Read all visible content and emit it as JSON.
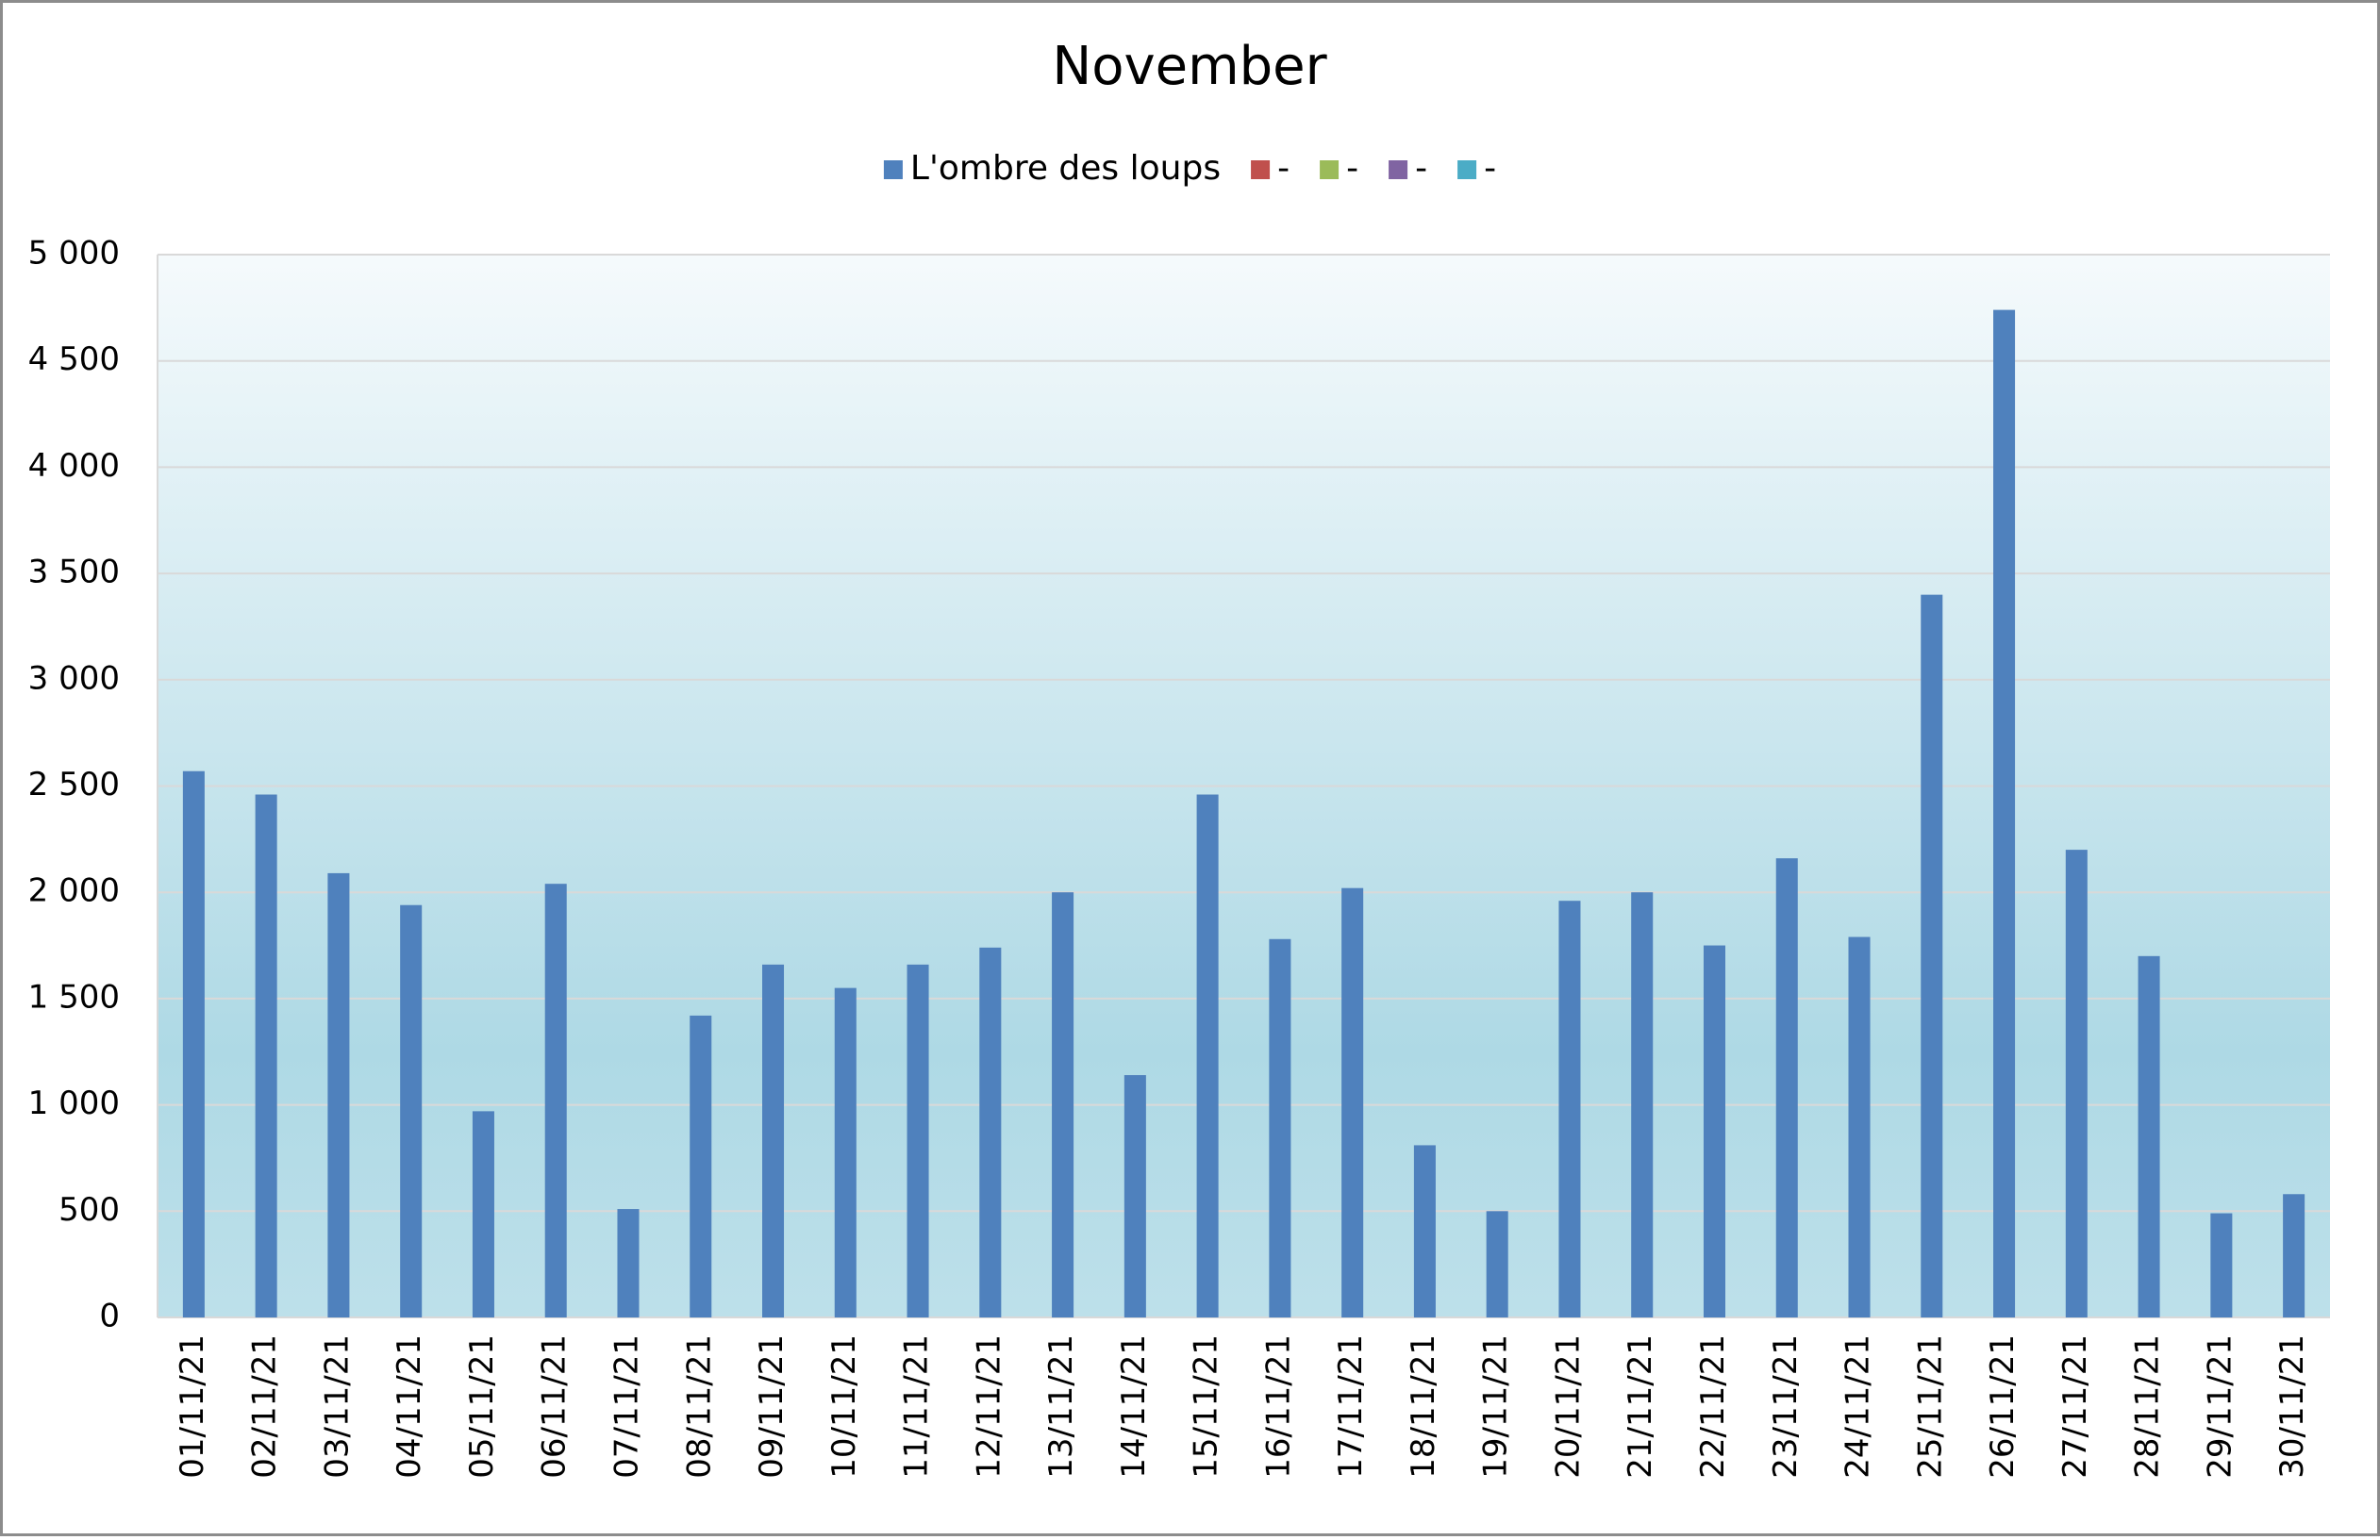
{
  "chart_data": {
    "type": "bar",
    "title": "November",
    "categories": [
      "01/11/21",
      "02/11/21",
      "03/11/21",
      "04/11/21",
      "05/11/21",
      "06/11/21",
      "07/11/21",
      "08/11/21",
      "09/11/21",
      "10/11/21",
      "11/11/21",
      "12/11/21",
      "13/11/21",
      "14/11/21",
      "15/11/21",
      "16/11/21",
      "17/11/21",
      "18/11/21",
      "19/11/21",
      "20/11/21",
      "21/11/21",
      "22/11/21",
      "23/11/21",
      "24/11/21",
      "25/11/21",
      "26/11/21",
      "27/11/21",
      "28/11/21",
      "29/11/21",
      "30/11/21"
    ],
    "series": [
      {
        "name": "L'ombre des loups",
        "color": "#4f81bd",
        "values": [
          2570,
          2460,
          2090,
          1940,
          970,
          2040,
          510,
          1420,
          1660,
          1550,
          1660,
          1740,
          2000,
          1140,
          2460,
          1780,
          2020,
          810,
          500,
          1960,
          2000,
          1750,
          2160,
          1790,
          3400,
          4740,
          2200,
          1700,
          490,
          580
        ]
      },
      {
        "name": "-",
        "color": "#c0504d",
        "values": [
          null,
          null,
          null,
          null,
          null,
          null,
          null,
          null,
          null,
          null,
          null,
          null,
          null,
          null,
          null,
          null,
          null,
          null,
          null,
          null,
          null,
          null,
          null,
          null,
          null,
          null,
          null,
          null,
          null,
          null
        ]
      },
      {
        "name": "-",
        "color": "#9bbb59",
        "values": [
          null,
          null,
          null,
          null,
          null,
          null,
          null,
          null,
          null,
          null,
          null,
          null,
          null,
          null,
          null,
          null,
          null,
          null,
          null,
          null,
          null,
          null,
          null,
          null,
          null,
          null,
          null,
          null,
          null,
          null
        ]
      },
      {
        "name": "-",
        "color": "#8064a2",
        "values": [
          null,
          null,
          null,
          null,
          null,
          null,
          null,
          null,
          null,
          null,
          null,
          null,
          null,
          null,
          null,
          null,
          null,
          null,
          null,
          null,
          null,
          null,
          null,
          null,
          null,
          null,
          null,
          null,
          null,
          null
        ]
      },
      {
        "name": "-",
        "color": "#4bacc6",
        "values": [
          null,
          null,
          null,
          null,
          null,
          null,
          null,
          null,
          null,
          null,
          null,
          null,
          null,
          null,
          null,
          null,
          null,
          null,
          null,
          null,
          null,
          null,
          null,
          null,
          null,
          null,
          null,
          null,
          null,
          null
        ]
      }
    ],
    "ylim": [
      0,
      5000
    ],
    "yticks": [
      0,
      500,
      {
        "value": 1000,
        "label": "1 000"
      },
      {
        "value": 1500,
        "label": "1 500"
      },
      {
        "value": 2000,
        "label": "2 000"
      },
      {
        "value": 2500,
        "label": "2 500"
      },
      {
        "value": 3000,
        "label": "3 000"
      },
      {
        "value": 3500,
        "label": "3 500"
      },
      {
        "value": 4000,
        "label": "4 000"
      },
      {
        "value": 4500,
        "label": "4 500"
      },
      {
        "value": 5000,
        "label": "5 000"
      }
    ],
    "grid": true,
    "legend": "top"
  }
}
